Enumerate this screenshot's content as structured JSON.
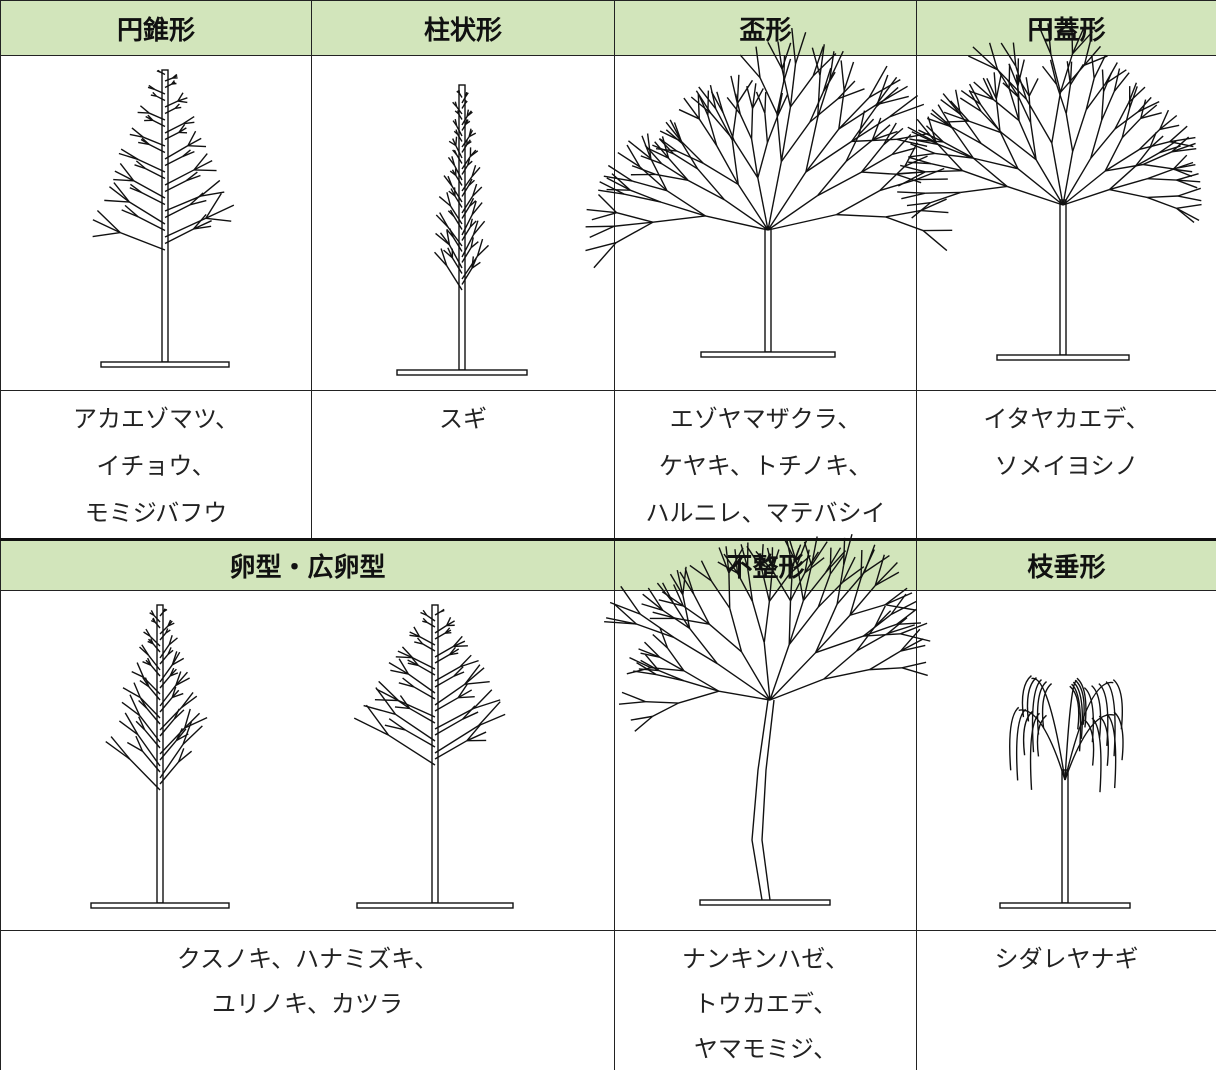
{
  "sections": [
    {
      "headers": [
        "円錐形",
        "柱状形",
        "盃形",
        "円蓋形"
      ],
      "species": [
        [
          "アカエゾマツ、",
          "イチョウ、",
          "モミジバフウ"
        ],
        [
          "スギ"
        ],
        [
          "エゾヤマザクラ、",
          "ケヤキ、トチノキ、",
          "ハルニレ、マテバシイ"
        ],
        [
          "イタヤカエデ、",
          "ソメイヨシノ"
        ]
      ]
    },
    {
      "headers": [
        "卵型・広卵型",
        "不整形",
        "枝垂形"
      ],
      "species": [
        [
          "クスノキ、ハナミズキ、",
          "ユリノキ、カツラ"
        ],
        [
          "ナンキンハゼ、",
          "トウカエデ、",
          "ヤマモミジ、"
        ],
        [
          "シダレヤナギ"
        ]
      ]
    }
  ]
}
